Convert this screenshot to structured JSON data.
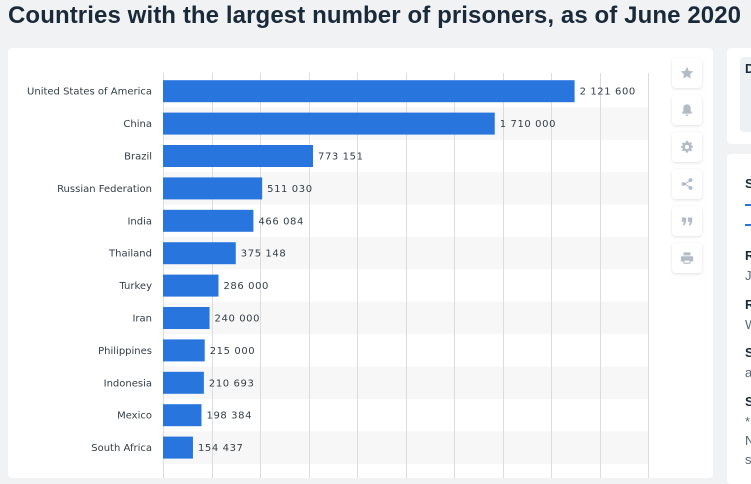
{
  "page": {
    "title": "Countries with the largest number of prisoners, as of June 2020"
  },
  "chart_data": {
    "type": "bar",
    "orientation": "horizontal",
    "categories": [
      "United States of America",
      "China",
      "Brazil",
      "Russian Federation",
      "India",
      "Thailand",
      "Turkey",
      "Iran",
      "Philippines",
      "Indonesia",
      "Mexico",
      "South Africa"
    ],
    "values": [
      2121600,
      1710000,
      773151,
      511030,
      466084,
      375148,
      286000,
      240000,
      215000,
      210693,
      198384,
      154437
    ],
    "value_labels": [
      "2 121 600",
      "1 710 000",
      "773 151",
      "511 030",
      "466 084",
      "375 148",
      "286 000",
      "240 000",
      "215 000",
      "210 693",
      "198 384",
      "154 437"
    ],
    "xlim": [
      0,
      2500000
    ],
    "grid": true,
    "bar_color": "#2876dd"
  },
  "toolbar": {
    "buttons": [
      {
        "name": "favorite-button",
        "icon": "star-icon"
      },
      {
        "name": "notification-button",
        "icon": "bell-icon"
      },
      {
        "name": "settings-button",
        "icon": "gear-icon"
      },
      {
        "name": "share-button",
        "icon": "share-icon"
      },
      {
        "name": "cite-button",
        "icon": "quote-icon"
      },
      {
        "name": "print-button",
        "icon": "printer-icon"
      }
    ]
  },
  "sidebar": {
    "top_letter": "D",
    "main_letters": [
      {
        "text": "S",
        "style": "bold"
      },
      {
        "text": "R",
        "style": "bold"
      },
      {
        "text": "Ju",
        "style": "light"
      },
      {
        "text": "R",
        "style": "bold"
      },
      {
        "text": "W",
        "style": "light"
      },
      {
        "text": "S",
        "style": "bold"
      },
      {
        "text": "a",
        "style": "light"
      },
      {
        "text": "S",
        "style": "bold"
      },
      {
        "text": "*",
        "style": "light"
      },
      {
        "text": "N",
        "style": "light"
      },
      {
        "text": "s",
        "style": "light"
      }
    ]
  }
}
